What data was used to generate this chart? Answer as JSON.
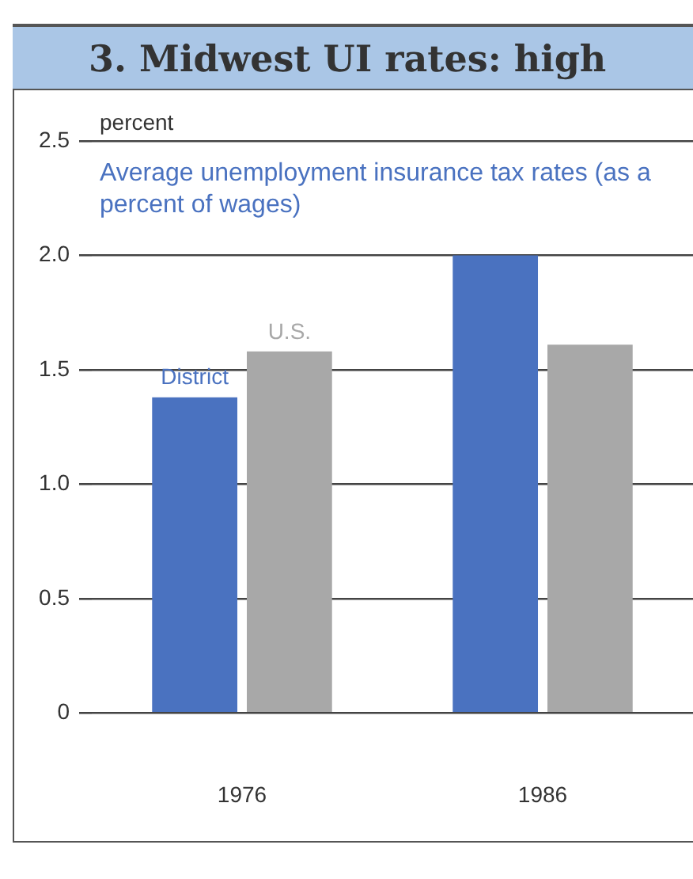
{
  "chart_data": {
    "type": "bar",
    "title": "3. Midwest UI rates: high",
    "subtitle": "Average unemployment insurance tax rates (as a percent of wages)",
    "ylabel": "percent",
    "categories": [
      "1976",
      "1986"
    ],
    "series": [
      {
        "name": "District",
        "color": "#4a72c0",
        "values": [
          1.38,
          2.0
        ]
      },
      {
        "name": "U.S.",
        "color": "#a8a8a8",
        "values": [
          1.58,
          1.61
        ]
      }
    ],
    "ylim": [
      0,
      2.5
    ],
    "yticks": [
      {
        "value": 0,
        "label": "0"
      },
      {
        "value": 0.5,
        "label": "0.5"
      },
      {
        "value": 1,
        "label": "1.0"
      },
      {
        "value": 1.5,
        "label": "1.5"
      },
      {
        "value": 2,
        "label": "2.0"
      },
      {
        "value": 2.5,
        "label": "2.5"
      }
    ],
    "grid": "y",
    "legend": false
  }
}
